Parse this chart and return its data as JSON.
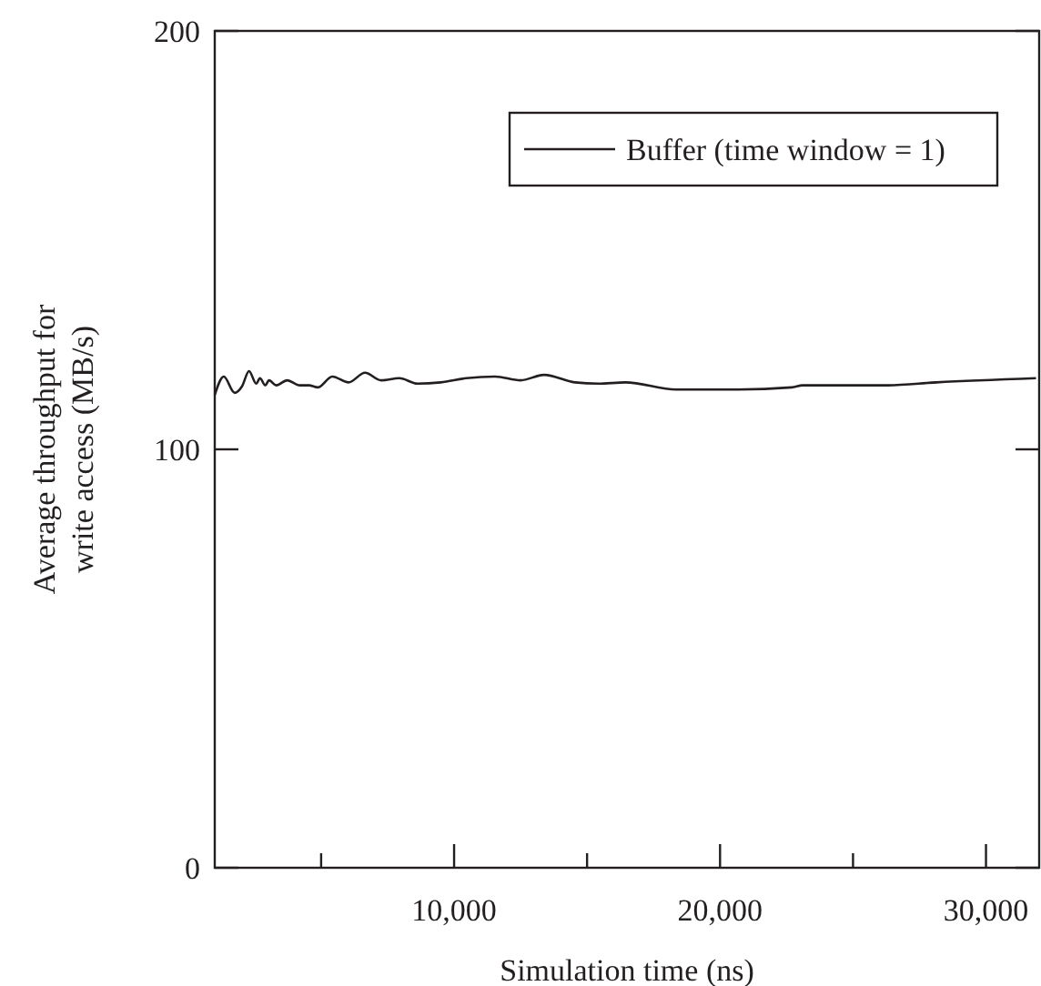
{
  "chart_data": {
    "type": "line",
    "xlabel": "Simulation time (ns)",
    "ylabel": "Average throughput for write access (MB/s)",
    "xlim": [
      1000,
      32000
    ],
    "ylim": [
      0,
      200
    ],
    "xticks": [
      {
        "value": 5000,
        "label": null
      },
      {
        "value": 10000,
        "label": "10,000"
      },
      {
        "value": 15000,
        "label": null
      },
      {
        "value": 20000,
        "label": "20,000"
      },
      {
        "value": 25000,
        "label": null
      },
      {
        "value": 30000,
        "label": "30,000"
      }
    ],
    "yticks": [
      0,
      100,
      200
    ],
    "legend": "top right",
    "grid": false,
    "series": [
      {
        "name": "Buffer (time window = 1)",
        "color": "#231f20",
        "x": [
          1000,
          1340,
          1750,
          2020,
          2290,
          2560,
          2700,
          2900,
          3040,
          3310,
          3720,
          4200,
          4540,
          4880,
          5420,
          6030,
          6650,
          7260,
          7940,
          8620,
          9500,
          10460,
          11540,
          12500,
          13380,
          14540,
          15420,
          16440,
          18350,
          20660,
          22700,
          23110,
          26310,
          28140,
          31880
        ],
        "values": [
          113,
          117.4,
          113.5,
          115,
          118.7,
          115.7,
          117,
          115.3,
          116.5,
          115.3,
          116.5,
          115.3,
          115.3,
          114.8,
          117.4,
          116,
          118.3,
          116.5,
          117,
          115.7,
          116,
          117,
          117.4,
          116.5,
          117.8,
          116,
          115.7,
          116,
          114.3,
          114.3,
          114.8,
          115.3,
          115.3,
          116,
          117
        ]
      }
    ]
  }
}
